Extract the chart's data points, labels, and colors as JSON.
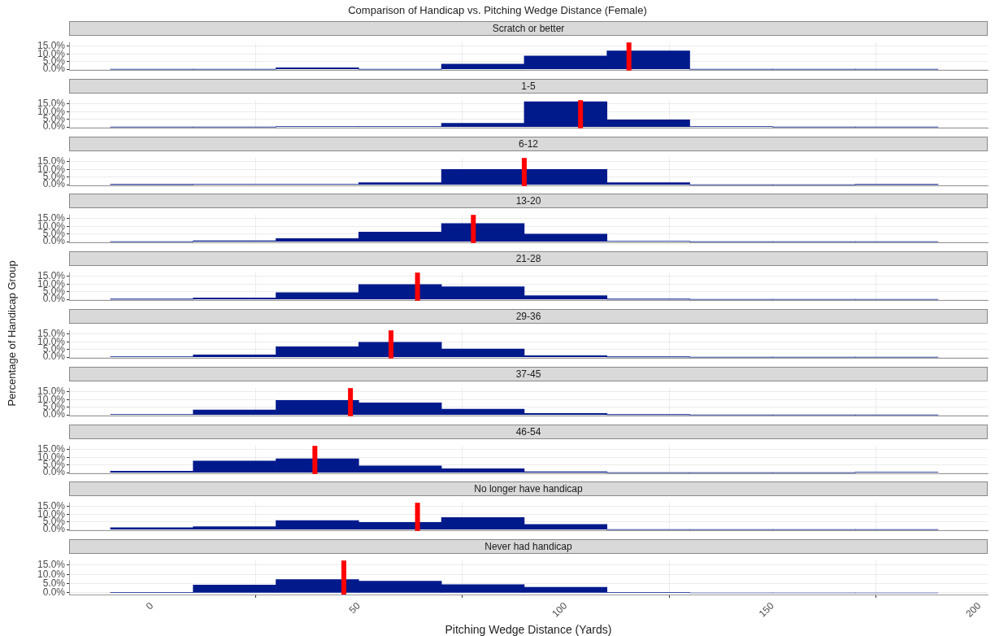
{
  "chart_data": [
    {
      "type": "histogram",
      "title": "Comparison of Handicap vs. Pitching Wedge Distance (Female)",
      "subtitle": "Scratch or better",
      "bins": [
        -10,
        10,
        30,
        50,
        70,
        90,
        110,
        130,
        150,
        170,
        190
      ],
      "values": [
        0,
        0,
        0.9,
        0,
        3.3,
        8.7,
        12,
        0,
        0,
        0
      ],
      "color": "#001a8c",
      "xlim": [
        -20,
        202
      ],
      "xticks": [
        0,
        50,
        100,
        150,
        200
      ],
      "ylim": [
        -0.9,
        17.5
      ],
      "yticks": [
        {
          "value": 0,
          "label": "0.0%"
        },
        {
          "value": 5,
          "label": "5.0%"
        },
        {
          "value": 10,
          "label": "10.0%"
        },
        {
          "value": 15,
          "label": "15.0%"
        }
      ],
      "grid": true,
      "tick_labels": "y",
      "ref_lines": [
        {
          "axis": "x",
          "value": 115.3,
          "color": "#ff0000"
        }
      ]
    },
    {
      "type": "histogram",
      "subtitle": "1-5",
      "bins": [
        -10,
        10,
        30,
        50,
        70,
        90,
        110,
        130,
        150,
        170,
        190
      ],
      "values": [
        0,
        0,
        0.3,
        0.2,
        2.4,
        16.5,
        4.7,
        0.3,
        0,
        0
      ],
      "color": "#001a8c",
      "xlim": [
        -20,
        202
      ],
      "xticks": [
        0,
        50,
        100,
        150,
        200
      ],
      "ylim": [
        -0.9,
        17.5
      ],
      "yticks": [
        {
          "value": 0,
          "label": "0.0%"
        },
        {
          "value": 5,
          "label": "5.0%"
        },
        {
          "value": 10,
          "label": "10.0%"
        },
        {
          "value": 15,
          "label": "15.0%"
        }
      ],
      "grid": true,
      "tick_labels": "y",
      "ref_lines": [
        {
          "axis": "x",
          "value": 103.6,
          "color": "#ff0000"
        }
      ]
    },
    {
      "type": "histogram",
      "subtitle": "6-12",
      "bins": [
        -10,
        10,
        30,
        50,
        70,
        90,
        110,
        130,
        150,
        170,
        190
      ],
      "values": [
        0.1,
        0.2,
        0.3,
        1.3,
        10,
        10,
        1.3,
        0,
        0,
        0.1
      ],
      "color": "#001a8c",
      "xlim": [
        -20,
        202
      ],
      "xticks": [
        0,
        50,
        100,
        150,
        200
      ],
      "ylim": [
        -0.9,
        17.5
      ],
      "yticks": [
        {
          "value": 0,
          "label": "0.0%"
        },
        {
          "value": 5,
          "label": "5.0%"
        },
        {
          "value": 10,
          "label": "10.0%"
        },
        {
          "value": 15,
          "label": "15.0%"
        }
      ],
      "grid": true,
      "tick_labels": "y",
      "ref_lines": [
        {
          "axis": "x",
          "value": 90,
          "color": "#ff0000"
        }
      ]
    },
    {
      "type": "histogram",
      "subtitle": "13-20",
      "bins": [
        -10,
        10,
        30,
        50,
        70,
        90,
        110,
        130,
        150,
        170,
        190
      ],
      "values": [
        0,
        0.6,
        2,
        6.2,
        11.8,
        5,
        0.3,
        0,
        0,
        0
      ],
      "color": "#001a8c",
      "xlim": [
        -20,
        202
      ],
      "xticks": [
        0,
        50,
        100,
        150,
        200
      ],
      "ylim": [
        -0.9,
        17.5
      ],
      "yticks": [
        {
          "value": 0,
          "label": "0.0%"
        },
        {
          "value": 5,
          "label": "5.0%"
        },
        {
          "value": 10,
          "label": "10.0%"
        },
        {
          "value": 15,
          "label": "15.0%"
        }
      ],
      "grid": true,
      "tick_labels": "y",
      "ref_lines": [
        {
          "axis": "x",
          "value": 77.7,
          "color": "#ff0000"
        }
      ]
    },
    {
      "type": "histogram",
      "subtitle": "21-28",
      "bins": [
        -10,
        10,
        30,
        50,
        70,
        90,
        110,
        130,
        150,
        170,
        190
      ],
      "values": [
        0.1,
        0.9,
        4.4,
        9.7,
        8.2,
        2.4,
        0.1,
        0,
        0,
        0
      ],
      "color": "#001a8c",
      "xlim": [
        -20,
        202
      ],
      "xticks": [
        0,
        50,
        100,
        150,
        200
      ],
      "ylim": [
        -0.9,
        17.5
      ],
      "yticks": [
        {
          "value": 0,
          "label": "0.0%"
        },
        {
          "value": 5,
          "label": "5.0%"
        },
        {
          "value": 10,
          "label": "10.0%"
        },
        {
          "value": 15,
          "label": "15.0%"
        }
      ],
      "grid": true,
      "tick_labels": "y",
      "ref_lines": [
        {
          "axis": "x",
          "value": 64.2,
          "color": "#ff0000"
        }
      ]
    },
    {
      "type": "histogram",
      "subtitle": "29-36",
      "ylabel": "Percentage of Handicap Group",
      "bins": [
        -10,
        10,
        30,
        50,
        70,
        90,
        110,
        130,
        150,
        170,
        190
      ],
      "values": [
        0.3,
        1.5,
        6.8,
        9.7,
        5.3,
        0.9,
        0.1,
        0,
        0,
        0
      ],
      "color": "#001a8c",
      "xlim": [
        -20,
        202
      ],
      "xticks": [
        0,
        50,
        100,
        150,
        200
      ],
      "ylim": [
        -0.9,
        17.5
      ],
      "yticks": [
        {
          "value": 0,
          "label": "0.0%"
        },
        {
          "value": 5,
          "label": "5.0%"
        },
        {
          "value": 10,
          "label": "10.0%"
        },
        {
          "value": 15,
          "label": "15.0%"
        }
      ],
      "grid": true,
      "tick_labels": "y",
      "ref_lines": [
        {
          "axis": "x",
          "value": 57.8,
          "color": "#ff0000"
        }
      ]
    },
    {
      "type": "histogram",
      "subtitle": "37-45",
      "bins": [
        -10,
        10,
        30,
        50,
        70,
        90,
        110,
        130,
        150,
        170,
        190
      ],
      "values": [
        0.3,
        3.2,
        9.4,
        7.9,
        3.8,
        0.9,
        0.1,
        0,
        0,
        0
      ],
      "color": "#001a8c",
      "xlim": [
        -20,
        202
      ],
      "xticks": [
        0,
        50,
        100,
        150,
        200
      ],
      "ylim": [
        -0.9,
        17.5
      ],
      "yticks": [
        {
          "value": 0,
          "label": "0.0%"
        },
        {
          "value": 5,
          "label": "5.0%"
        },
        {
          "value": 10,
          "label": "10.0%"
        },
        {
          "value": 15,
          "label": "15.0%"
        }
      ],
      "grid": true,
      "tick_labels": "y",
      "ref_lines": [
        {
          "axis": "x",
          "value": 48,
          "color": "#ff0000"
        }
      ]
    },
    {
      "type": "histogram",
      "subtitle": "46-54",
      "bins": [
        -10,
        10,
        30,
        50,
        70,
        90,
        110,
        130,
        150,
        170,
        190
      ],
      "values": [
        0.9,
        7.6,
        9.1,
        4.4,
        2.6,
        0.5,
        0,
        0,
        0,
        0.3
      ],
      "color": "#001a8c",
      "xlim": [
        -20,
        202
      ],
      "xticks": [
        0,
        50,
        100,
        150,
        200
      ],
      "ylim": [
        -0.9,
        17.5
      ],
      "yticks": [
        {
          "value": 0,
          "label": "0.0%"
        },
        {
          "value": 5,
          "label": "5.0%"
        },
        {
          "value": 10,
          "label": "10.0%"
        },
        {
          "value": 15,
          "label": "15.0%"
        }
      ],
      "grid": true,
      "tick_labels": "y",
      "ref_lines": [
        {
          "axis": "x",
          "value": 39.4,
          "color": "#ff0000"
        }
      ]
    },
    {
      "type": "histogram",
      "subtitle": "No longer have handicap",
      "bins": [
        -10,
        10,
        30,
        50,
        70,
        90,
        110,
        130,
        150,
        170,
        190
      ],
      "values": [
        1.2,
        1.9,
        5.9,
        4.7,
        7.9,
        3.4,
        0,
        0,
        0,
        0
      ],
      "color": "#001a8c",
      "xlim": [
        -20,
        202
      ],
      "xticks": [
        0,
        50,
        100,
        150,
        200
      ],
      "ylim": [
        -0.9,
        17.5
      ],
      "yticks": [
        {
          "value": 0,
          "label": "0.0%"
        },
        {
          "value": 5,
          "label": "5.0%"
        },
        {
          "value": 10,
          "label": "10.0%"
        },
        {
          "value": 15,
          "label": "15.0%"
        }
      ],
      "grid": true,
      "tick_labels": "y",
      "ref_lines": [
        {
          "axis": "x",
          "value": 64.2,
          "color": "#ff0000"
        }
      ]
    },
    {
      "type": "histogram",
      "subtitle": "Never had handicap",
      "xlabel": "Pitching Wedge Distance (Yards)",
      "bins": [
        -10,
        10,
        30,
        50,
        70,
        90,
        110,
        130,
        150,
        170,
        190
      ],
      "values": [
        0.3,
        4.2,
        7.2,
        6.3,
        4.5,
        3,
        0.3,
        0,
        0,
        0
      ],
      "color": "#001a8c",
      "xlim": [
        -20,
        202
      ],
      "xticks": [
        0,
        50,
        100,
        150,
        200
      ],
      "ylim": [
        -0.9,
        17.5
      ],
      "yticks": [
        {
          "value": 0,
          "label": "0.0%"
        },
        {
          "value": 5,
          "label": "5.0%"
        },
        {
          "value": 10,
          "label": "10.0%"
        },
        {
          "value": 15,
          "label": "15.0%"
        }
      ],
      "grid": true,
      "ref_lines": [
        {
          "axis": "x",
          "value": 46.4,
          "color": "#ff0000"
        }
      ]
    }
  ]
}
